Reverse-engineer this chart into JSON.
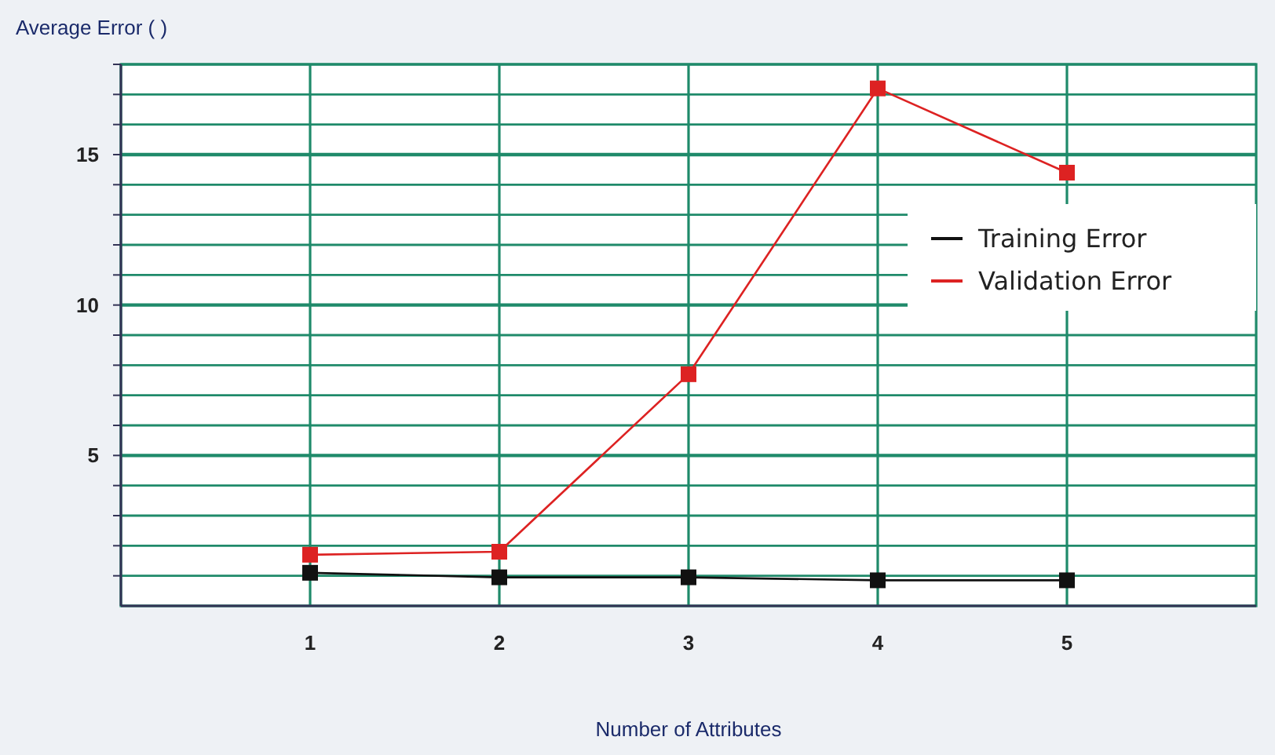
{
  "chart_data": {
    "type": "line",
    "ylabel": "Average Error ( )",
    "xlabel": "Number of Attributes",
    "x": [
      1,
      2,
      3,
      4,
      5
    ],
    "series": [
      {
        "name": "Training Error",
        "color": "#111111",
        "values": [
          1.1,
          0.95,
          0.95,
          0.85,
          0.85
        ]
      },
      {
        "name": "Validation Error",
        "color": "#dd2222",
        "values": [
          1.7,
          1.8,
          7.7,
          17.2,
          14.4
        ]
      }
    ],
    "xlim": [
      0,
      6
    ],
    "xticks": [
      1,
      2,
      3,
      4,
      5
    ],
    "ylim": [
      0,
      18
    ],
    "yticks": [
      {
        "value": 1,
        "label": null
      },
      {
        "value": 2,
        "label": null
      },
      {
        "value": 3,
        "label": null
      },
      {
        "value": 4,
        "label": null
      },
      5,
      {
        "value": 6,
        "label": null
      },
      {
        "value": 7,
        "label": null
      },
      {
        "value": 8,
        "label": null
      },
      {
        "value": 9,
        "label": null
      },
      10,
      {
        "value": 11,
        "label": null
      },
      {
        "value": 12,
        "label": null
      },
      {
        "value": 13,
        "label": null
      },
      {
        "value": 14,
        "label": null
      },
      15,
      {
        "value": 16,
        "label": null
      },
      {
        "value": 17,
        "label": null
      },
      {
        "value": 18,
        "label": null
      }
    ],
    "grid": true,
    "legend": "right",
    "marker": "square",
    "line_style": "solid"
  }
}
